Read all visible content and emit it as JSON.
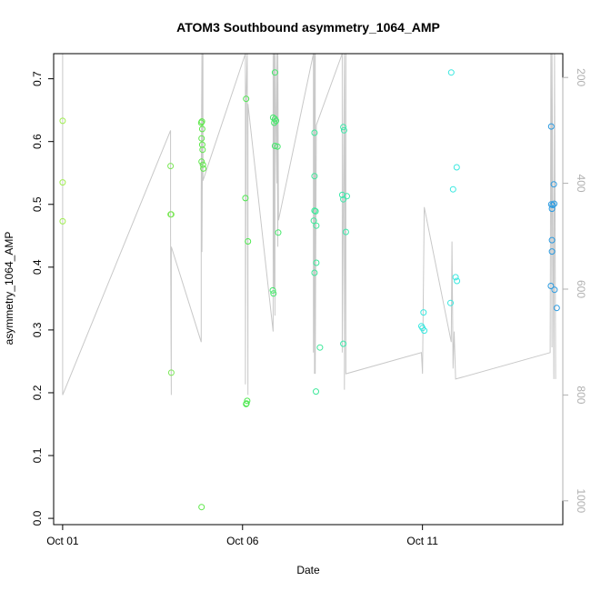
{
  "chart_data": {
    "type": "scatter",
    "title": "ATOM3 Southbound asymmetry_1064_AMP",
    "xlabel": "Date",
    "ylabel": "asymmetry_1064_AMP",
    "x_unit": "day of October",
    "xlim": [
      0.75,
      14.9
    ],
    "ylim": [
      -0.01,
      0.74
    ],
    "x_ticks": [
      {
        "value": 1,
        "label": "Oct 01"
      },
      {
        "value": 6,
        "label": "Oct 06"
      },
      {
        "value": 11,
        "label": "Oct 11"
      }
    ],
    "y_ticks": [
      0.0,
      0.1,
      0.2,
      0.3,
      0.4,
      0.5,
      0.6,
      0.7
    ],
    "y2_ticks": [
      200,
      400,
      600,
      800,
      1000
    ],
    "y2_range": [
      1045,
      155
    ],
    "grid": false,
    "legend": "none",
    "points": [
      {
        "x": 1.0,
        "y": 0.633,
        "color": "#a0ee50"
      },
      {
        "x": 1.0,
        "y": 0.535,
        "color": "#a0ee50"
      },
      {
        "x": 1.0,
        "y": 0.473,
        "color": "#a0ee50"
      },
      {
        "x": 4.0,
        "y": 0.561,
        "color": "#7ee85a"
      },
      {
        "x": 4.0,
        "y": 0.484,
        "color": "#7ee85a"
      },
      {
        "x": 4.02,
        "y": 0.484,
        "color": "#7ee85a"
      },
      {
        "x": 4.02,
        "y": 0.232,
        "color": "#7ee85a"
      },
      {
        "x": 4.85,
        "y": 0.63,
        "color": "#5ee84a"
      },
      {
        "x": 4.87,
        "y": 0.632,
        "color": "#5ee84a"
      },
      {
        "x": 4.88,
        "y": 0.62,
        "color": "#5ee84a"
      },
      {
        "x": 4.86,
        "y": 0.605,
        "color": "#5ee84a"
      },
      {
        "x": 4.88,
        "y": 0.595,
        "color": "#5ee84a"
      },
      {
        "x": 4.89,
        "y": 0.587,
        "color": "#5ee84a"
      },
      {
        "x": 4.86,
        "y": 0.568,
        "color": "#5ee84a"
      },
      {
        "x": 4.9,
        "y": 0.563,
        "color": "#5ee84a"
      },
      {
        "x": 4.91,
        "y": 0.557,
        "color": "#5ee84a"
      },
      {
        "x": 4.86,
        "y": 0.018,
        "color": "#5ee84a"
      },
      {
        "x": 6.1,
        "y": 0.668,
        "color": "#4ee850"
      },
      {
        "x": 6.08,
        "y": 0.51,
        "color": "#4ee850"
      },
      {
        "x": 6.15,
        "y": 0.441,
        "color": "#4ee850"
      },
      {
        "x": 6.1,
        "y": 0.182,
        "color": "#4ee850"
      },
      {
        "x": 6.13,
        "y": 0.187,
        "color": "#4ee850"
      },
      {
        "x": 6.11,
        "y": 0.183,
        "color": "#4ee850"
      },
      {
        "x": 6.9,
        "y": 0.71,
        "color": "#44e86a"
      },
      {
        "x": 6.85,
        "y": 0.638,
        "color": "#44e86a"
      },
      {
        "x": 6.9,
        "y": 0.636,
        "color": "#44e86a"
      },
      {
        "x": 6.88,
        "y": 0.63,
        "color": "#44e86a"
      },
      {
        "x": 6.93,
        "y": 0.633,
        "color": "#44e86a"
      },
      {
        "x": 6.9,
        "y": 0.593,
        "color": "#44e86a"
      },
      {
        "x": 6.97,
        "y": 0.592,
        "color": "#44e86a"
      },
      {
        "x": 6.99,
        "y": 0.455,
        "color": "#44e86a"
      },
      {
        "x": 6.84,
        "y": 0.363,
        "color": "#44e86a"
      },
      {
        "x": 6.86,
        "y": 0.358,
        "color": "#44e86a"
      },
      {
        "x": 8.0,
        "y": 0.614,
        "color": "#3ee89a"
      },
      {
        "x": 8.0,
        "y": 0.545,
        "color": "#3ee89a"
      },
      {
        "x": 8.0,
        "y": 0.49,
        "color": "#3ee89a"
      },
      {
        "x": 8.03,
        "y": 0.489,
        "color": "#3ee89a"
      },
      {
        "x": 7.98,
        "y": 0.474,
        "color": "#3ee89a"
      },
      {
        "x": 8.05,
        "y": 0.466,
        "color": "#3ee89a"
      },
      {
        "x": 8.05,
        "y": 0.407,
        "color": "#3ee89a"
      },
      {
        "x": 8.0,
        "y": 0.391,
        "color": "#3ee89a"
      },
      {
        "x": 8.15,
        "y": 0.272,
        "color": "#3ee89a"
      },
      {
        "x": 8.04,
        "y": 0.202,
        "color": "#3ee89a"
      },
      {
        "x": 8.8,
        "y": 0.623,
        "color": "#3ce8aa"
      },
      {
        "x": 8.82,
        "y": 0.618,
        "color": "#3ce8aa"
      },
      {
        "x": 8.77,
        "y": 0.515,
        "color": "#3ce8aa"
      },
      {
        "x": 8.9,
        "y": 0.513,
        "color": "#3ce8aa"
      },
      {
        "x": 8.8,
        "y": 0.508,
        "color": "#3ce8aa"
      },
      {
        "x": 8.87,
        "y": 0.456,
        "color": "#3ce8aa"
      },
      {
        "x": 8.8,
        "y": 0.278,
        "color": "#3ce8aa"
      },
      {
        "x": 11.03,
        "y": 0.328,
        "color": "#3ae8e0"
      },
      {
        "x": 10.97,
        "y": 0.306,
        "color": "#3ae8e0"
      },
      {
        "x": 11.0,
        "y": 0.303,
        "color": "#3ae8e0"
      },
      {
        "x": 11.05,
        "y": 0.299,
        "color": "#3ae8e0"
      },
      {
        "x": 11.8,
        "y": 0.71,
        "color": "#3ae8e0"
      },
      {
        "x": 11.95,
        "y": 0.559,
        "color": "#3ae8e0"
      },
      {
        "x": 11.85,
        "y": 0.524,
        "color": "#3ae8e0"
      },
      {
        "x": 11.92,
        "y": 0.384,
        "color": "#3ae8e0"
      },
      {
        "x": 11.96,
        "y": 0.378,
        "color": "#3ae8e0"
      },
      {
        "x": 11.78,
        "y": 0.343,
        "color": "#3ae8e0"
      },
      {
        "x": 14.58,
        "y": 0.624,
        "color": "#2a9ae0"
      },
      {
        "x": 14.65,
        "y": 0.532,
        "color": "#2a9ae0"
      },
      {
        "x": 14.58,
        "y": 0.5,
        "color": "#2a9ae0"
      },
      {
        "x": 14.66,
        "y": 0.501,
        "color": "#2a9ae0"
      },
      {
        "x": 14.62,
        "y": 0.499,
        "color": "#2a9ae0"
      },
      {
        "x": 14.6,
        "y": 0.493,
        "color": "#2a9ae0"
      },
      {
        "x": 14.6,
        "y": 0.443,
        "color": "#2a9ae0"
      },
      {
        "x": 14.6,
        "y": 0.425,
        "color": "#2a9ae0"
      },
      {
        "x": 14.57,
        "y": 0.37,
        "color": "#2a9ae0"
      },
      {
        "x": 14.67,
        "y": 0.364,
        "color": "#2a9ae0"
      },
      {
        "x": 14.73,
        "y": 0.335,
        "color": "#2a9ae0"
      }
    ],
    "secondary_line": {
      "color": "#c8c8c8",
      "axis": "right",
      "points": [
        [
          1.0,
          155
        ],
        [
          1.0,
          800
        ],
        [
          4.0,
          300
        ],
        [
          4.0,
          500
        ],
        [
          4.02,
          800
        ],
        [
          4.02,
          520
        ],
        [
          4.85,
          700
        ],
        [
          4.85,
          420
        ],
        [
          4.87,
          155
        ],
        [
          4.87,
          530
        ],
        [
          4.9,
          155
        ],
        [
          4.9,
          395
        ],
        [
          6.08,
          155
        ],
        [
          6.08,
          780
        ],
        [
          6.1,
          240
        ],
        [
          6.13,
          155
        ],
        [
          6.15,
          800
        ],
        [
          6.15,
          250
        ],
        [
          6.85,
          680
        ],
        [
          6.85,
          155
        ],
        [
          6.88,
          600
        ],
        [
          6.88,
          155
        ],
        [
          6.9,
          650
        ],
        [
          6.9,
          155
        ],
        [
          6.95,
          400
        ],
        [
          6.95,
          155
        ],
        [
          6.98,
          520
        ],
        [
          6.98,
          155
        ],
        [
          7.0,
          470
        ],
        [
          7.97,
          155
        ],
        [
          7.97,
          720
        ],
        [
          8.0,
          155
        ],
        [
          8.0,
          760
        ],
        [
          8.02,
          155
        ],
        [
          8.02,
          760
        ],
        [
          8.05,
          290
        ],
        [
          8.77,
          155
        ],
        [
          8.77,
          720
        ],
        [
          8.83,
          155
        ],
        [
          8.83,
          790
        ],
        [
          8.87,
          155
        ],
        [
          8.87,
          760
        ],
        [
          10.97,
          720
        ],
        [
          11.0,
          760
        ],
        [
          11.05,
          445
        ],
        [
          11.8,
          700
        ],
        [
          11.82,
          510
        ],
        [
          11.85,
          750
        ],
        [
          11.88,
          680
        ],
        [
          11.92,
          770
        ],
        [
          14.55,
          720
        ],
        [
          14.57,
          155
        ],
        [
          14.6,
          710
        ],
        [
          14.6,
          155
        ],
        [
          14.65,
          770
        ],
        [
          14.67,
          155
        ],
        [
          14.7,
          770
        ]
      ]
    }
  }
}
